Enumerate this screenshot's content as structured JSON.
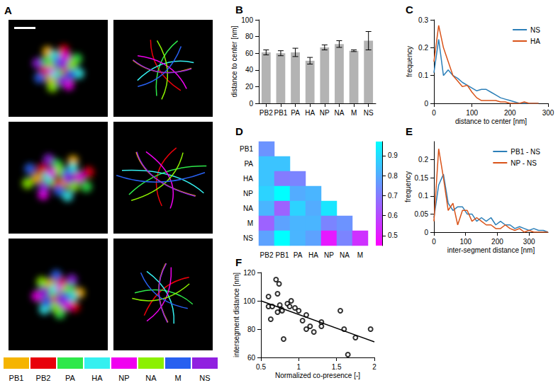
{
  "panel_a": {
    "label": "A",
    "segments": [
      {
        "name": "PB1",
        "color": "#f5b400"
      },
      {
        "name": "PB2",
        "color": "#e8000b"
      },
      {
        "name": "PA",
        "color": "#2ee84a"
      },
      {
        "name": "HA",
        "color": "#35f0f0"
      },
      {
        "name": "NP",
        "color": "#f000f0"
      },
      {
        "name": "NA",
        "color": "#8cf000"
      },
      {
        "name": "M",
        "color": "#2860f0"
      },
      {
        "name": "NS",
        "color": "#9020e0"
      }
    ]
  },
  "chart_data": [
    {
      "label": "B",
      "type": "bar",
      "categories": [
        "PB2",
        "PB1",
        "PA",
        "HA",
        "NP",
        "NA",
        "M",
        "NS"
      ],
      "values": [
        61,
        60,
        61,
        51,
        67,
        71,
        63,
        75
      ],
      "errors": [
        3,
        3,
        5,
        4,
        3,
        4,
        1,
        11
      ],
      "color": "#b3b3b3",
      "ylabel": "distance to center [nm]",
      "ylim": [
        0,
        100
      ],
      "yticks": [
        0,
        20,
        40,
        60,
        80,
        100
      ],
      "grid": false
    },
    {
      "label": "C",
      "type": "line",
      "xlabel": "distance to center [nm]",
      "ylabel": "frequency",
      "x": [
        0,
        12.5,
        25,
        37.5,
        50,
        62.5,
        75,
        87.5,
        100,
        112.5,
        125,
        137.5,
        150,
        162.5,
        175,
        187.5,
        200,
        212.5,
        225,
        237.5,
        250,
        262.5,
        275
      ],
      "series": [
        {
          "name": "NS",
          "color": "#2c7fb8",
          "values": [
            0.11,
            0.23,
            0.1,
            0.12,
            0.1,
            0.09,
            0.075,
            0.065,
            0.055,
            0.045,
            0.05,
            0.05,
            0.04,
            0.03,
            0.02,
            0.015,
            0.01,
            0.005,
            0,
            0,
            0,
            0,
            0
          ]
        },
        {
          "name": "HA",
          "color": "#d95319",
          "values": [
            0.15,
            0.28,
            0.2,
            0.15,
            0.1,
            0.08,
            0.06,
            0.065,
            0.04,
            0.02,
            0.01,
            0.01,
            0.01,
            0.01,
            0.005,
            0.005,
            0,
            0,
            0,
            0.005,
            0,
            0,
            0
          ]
        }
      ],
      "xlim": [
        0,
        300
      ],
      "xticks": [
        0,
        100,
        200,
        300
      ],
      "ylim": [
        0,
        0.3
      ],
      "yticks": [
        0,
        0.1,
        0.2,
        0.3
      ],
      "legend": "top-right",
      "grid": false
    },
    {
      "label": "D",
      "type": "heatmap",
      "columns": [
        "PB2",
        "PB1",
        "PA",
        "HA",
        "NP",
        "NA",
        "M"
      ],
      "rows": [
        "PB1",
        "PA",
        "HA",
        "NP",
        "NA",
        "M",
        "NS"
      ],
      "cells": [
        [
          0.75,
          null,
          null,
          null,
          null,
          null,
          null
        ],
        [
          0.85,
          0.85,
          null,
          null,
          null,
          null,
          null
        ],
        [
          0.85,
          0.7,
          0.72,
          null,
          null,
          null,
          null
        ],
        [
          0.88,
          0.97,
          0.8,
          0.82,
          null,
          null,
          null
        ],
        [
          0.82,
          0.65,
          0.88,
          0.8,
          0.92,
          null,
          null
        ],
        [
          0.65,
          0.78,
          0.82,
          0.82,
          0.72,
          0.75,
          null
        ],
        [
          0.78,
          0.97,
          0.82,
          0.78,
          0.5,
          0.72,
          0.55
        ]
      ],
      "colorbar": {
        "range": [
          0.45,
          0.97
        ],
        "ticks": [
          0.5,
          0.6,
          0.7,
          0.8,
          0.9
        ],
        "colors": [
          "#ff00ff",
          "#00ffff"
        ]
      }
    },
    {
      "label": "E",
      "type": "line",
      "xlabel": "inter-segment distance [nm]",
      "ylabel": "frequency",
      "x": [
        0,
        15,
        30,
        45,
        60,
        75,
        90,
        105,
        120,
        135,
        150,
        165,
        180,
        195,
        210,
        225,
        240,
        255,
        270,
        285,
        300,
        315,
        330,
        345,
        360
      ],
      "series": [
        {
          "name": "PB1 - NS",
          "color": "#2c7fb8",
          "values": [
            0.04,
            0.13,
            0.16,
            0.08,
            0.06,
            0.07,
            0.07,
            0.05,
            0.05,
            0.03,
            0.04,
            0.03,
            0.04,
            0.02,
            0.03,
            0.02,
            0.02,
            0.01,
            0.015,
            0.01,
            0.005,
            0.01,
            0.005,
            0.005,
            0
          ]
        },
        {
          "name": "NP - NS",
          "color": "#d95319",
          "values": [
            0.03,
            0.23,
            0.15,
            0.06,
            0.08,
            0.02,
            0.06,
            0.06,
            0.03,
            0.04,
            0.03,
            0.02,
            0.02,
            0.01,
            0.01,
            0.02,
            0.01,
            0.005,
            0.01,
            0,
            0.005,
            0,
            0,
            0,
            0
          ]
        }
      ],
      "xlim": [
        0,
        360
      ],
      "xticks": [
        0,
        100,
        200,
        300
      ],
      "ylim": [
        0,
        0.25
      ],
      "yticks": [
        0,
        0.05,
        0.1,
        0.15,
        0.2
      ],
      "legend": "top-right",
      "grid": false
    },
    {
      "label": "F",
      "type": "scatter",
      "xlabel": "Normalized co-presence [-]",
      "ylabel": "intersegment distance [nm]",
      "series": [
        {
          "type": "scatter",
          "marker": "open_circle",
          "color": "#000000",
          "x": [
            0.6,
            0.6,
            0.63,
            0.65,
            0.7,
            0.72,
            0.72,
            0.74,
            0.75,
            0.77,
            0.78,
            0.8,
            0.85,
            0.88,
            0.9,
            0.95,
            1.0,
            1.05,
            1.1,
            1.1,
            1.15,
            1.2,
            1.3,
            1.3,
            1.55,
            1.6,
            1.65,
            1.75,
            1.95
          ],
          "values": [
            103,
            96,
            87,
            96,
            115,
            105,
            92,
            112,
            97,
            94,
            93,
            73,
            98,
            96,
            100,
            95,
            93,
            86,
            90,
            80,
            82,
            78,
            82,
            85,
            93,
            80,
            62,
            74,
            80
          ]
        },
        {
          "type": "line",
          "color": "#000000",
          "x": [
            0.5,
            2
          ],
          "values": [
            100,
            71
          ]
        }
      ],
      "xlim": [
        0.5,
        2
      ],
      "xticks": [
        0.5,
        1,
        1.5,
        2
      ],
      "ylim": [
        60,
        120
      ],
      "yticks": [
        60,
        80,
        100,
        120
      ],
      "grid": false
    }
  ]
}
